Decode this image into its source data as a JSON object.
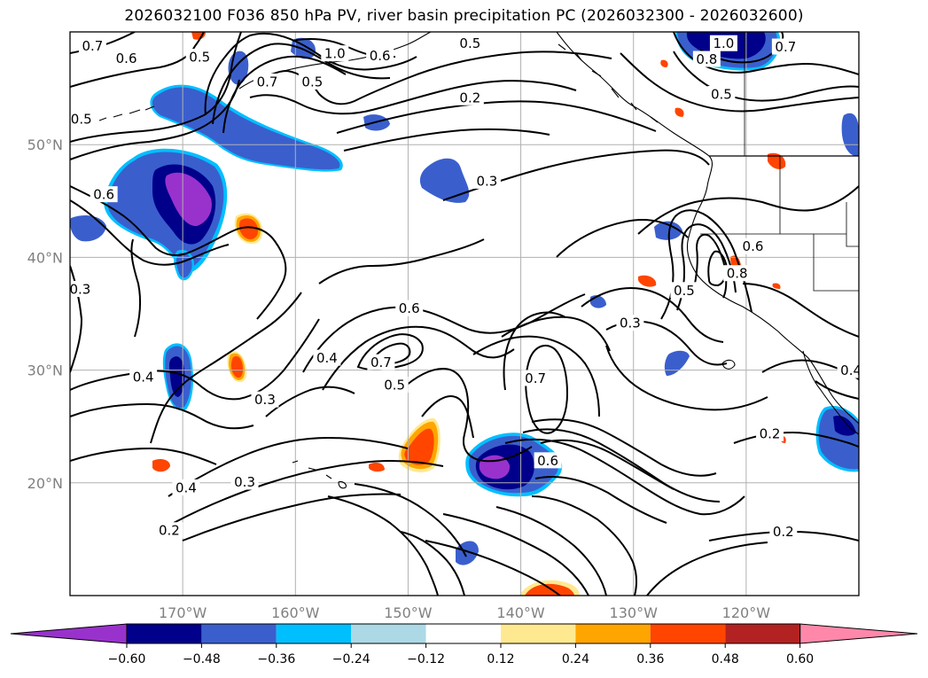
{
  "title": "2026032100 F036 850 hPa PV, river basin precipitation PC (2026032300 - 2026032600)",
  "map": {
    "lon_range": [
      -180,
      -110
    ],
    "lat_range": [
      10,
      60
    ],
    "lon_ticks": [
      {
        "value": -170,
        "label": "170°W"
      },
      {
        "value": -160,
        "label": "160°W"
      },
      {
        "value": -150,
        "label": "150°W"
      },
      {
        "value": -140,
        "label": "140°W"
      },
      {
        "value": -130,
        "label": "130°W"
      },
      {
        "value": -120,
        "label": "120°W"
      }
    ],
    "lat_ticks": [
      {
        "value": 20,
        "label": "20°N"
      },
      {
        "value": 30,
        "label": "30°N"
      },
      {
        "value": 40,
        "label": "40°N"
      },
      {
        "value": 50,
        "label": "50°N"
      }
    ],
    "grid": true,
    "contour_labels": [
      {
        "text": "0.7",
        "lon": -178,
        "lat": 58.8
      },
      {
        "text": "0.6",
        "lon": -175,
        "lat": 57.7
      },
      {
        "text": "0.5",
        "lon": -168.5,
        "lat": 57.8
      },
      {
        "text": "0.7",
        "lon": -162.5,
        "lat": 55.6
      },
      {
        "text": "0.5",
        "lon": -158.5,
        "lat": 55.6
      },
      {
        "text": "1.0",
        "lon": -156.5,
        "lat": 58.1
      },
      {
        "text": "0.6",
        "lon": -152.5,
        "lat": 57.9
      },
      {
        "text": "0.5",
        "lon": -179,
        "lat": 52.3
      },
      {
        "text": "0.5",
        "lon": -144.5,
        "lat": 59.0
      },
      {
        "text": "0.2",
        "lon": -144.5,
        "lat": 54.2
      },
      {
        "text": "0.3",
        "lon": -143,
        "lat": 46.8
      },
      {
        "text": "1.0",
        "lon": -122,
        "lat": 59.0
      },
      {
        "text": "0.8",
        "lon": -123.5,
        "lat": 57.6
      },
      {
        "text": "0.5",
        "lon": -122.2,
        "lat": 54.5
      },
      {
        "text": "0.7",
        "lon": -116.5,
        "lat": 58.7
      },
      {
        "text": "0.6",
        "lon": -177,
        "lat": 45.6
      },
      {
        "text": "0.3",
        "lon": -179.1,
        "lat": 37.2
      },
      {
        "text": "0.4",
        "lon": -173.5,
        "lat": 29.4
      },
      {
        "text": "0.6",
        "lon": -149.9,
        "lat": 35.5
      },
      {
        "text": "0.4",
        "lon": -157.2,
        "lat": 31.1
      },
      {
        "text": "0.7",
        "lon": -152.4,
        "lat": 30.7
      },
      {
        "text": "0.5",
        "lon": -151.2,
        "lat": 28.7
      },
      {
        "text": "0.3",
        "lon": -162.7,
        "lat": 27.4
      },
      {
        "text": "0.7",
        "lon": -138.7,
        "lat": 29.3
      },
      {
        "text": "0.3",
        "lon": -130.3,
        "lat": 34.2
      },
      {
        "text": "0.5",
        "lon": -125.5,
        "lat": 37.1
      },
      {
        "text": "0.8",
        "lon": -120.8,
        "lat": 38.6
      },
      {
        "text": "0.6",
        "lon": -119.4,
        "lat": 41.0
      },
      {
        "text": "0.4",
        "lon": -169.7,
        "lat": 19.6
      },
      {
        "text": "0.3",
        "lon": -164.5,
        "lat": 20.1
      },
      {
        "text": "0.2",
        "lon": -171.2,
        "lat": 15.8
      },
      {
        "text": "0.6",
        "lon": -137.6,
        "lat": 22.0
      },
      {
        "text": "0.2",
        "lon": -117.9,
        "lat": 24.4
      },
      {
        "text": "0.2",
        "lon": -116.7,
        "lat": 15.7
      },
      {
        "text": "0.4",
        "lon": -110.7,
        "lat": 30.0
      }
    ]
  },
  "colorbar": {
    "tick_labels": [
      "−0.60",
      "−0.48",
      "−0.36",
      "−0.24",
      "−0.12",
      "0.12",
      "0.24",
      "0.36",
      "0.48",
      "0.60"
    ],
    "bins": [
      {
        "label": "< -0.60",
        "color": "#9932cc"
      },
      {
        "label": "-0.60 to -0.48",
        "color": "#00008b"
      },
      {
        "label": "-0.48 to -0.36",
        "color": "#3a5fcd"
      },
      {
        "label": "-0.36 to -0.24",
        "color": "#00bfff"
      },
      {
        "label": "-0.24 to -0.12",
        "color": "#add8e6"
      },
      {
        "label": "-0.12 to 0.12",
        "color": "#ffffff"
      },
      {
        "label": "0.12 to 0.24",
        "color": "#ffe990"
      },
      {
        "label": "0.24 to 0.36",
        "color": "#ffa500"
      },
      {
        "label": "0.36 to 0.48",
        "color": "#ff4500"
      },
      {
        "label": "0.48 to 0.60",
        "color": "#b22222"
      },
      {
        "label": "> 0.60",
        "color": "#ff88aa"
      }
    ]
  }
}
